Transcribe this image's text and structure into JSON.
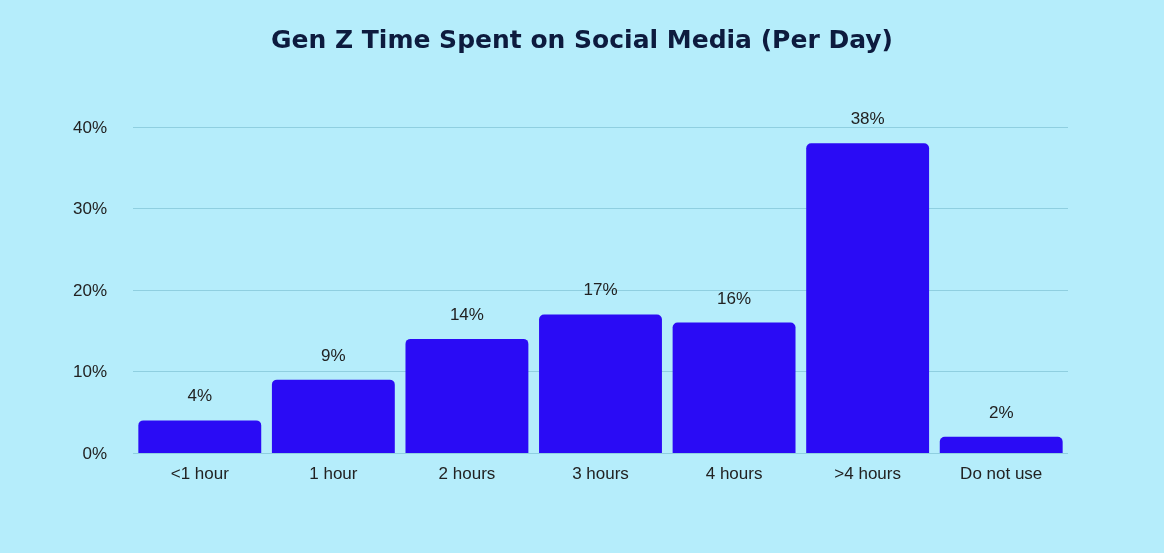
{
  "chart_data": {
    "type": "bar",
    "title": "Gen Z Time Spent on Social Media (Per Day)",
    "categories": [
      "<1 hour",
      "1 hour",
      "2 hours",
      "3 hours",
      "4 hours",
      ">4 hours",
      "Do not use"
    ],
    "values": [
      4,
      9,
      14,
      17,
      16,
      38,
      2
    ],
    "value_labels": [
      "4%",
      "9%",
      "14%",
      "17%",
      "16%",
      "38%",
      "2%"
    ],
    "color": "#2a0bf5",
    "ylim": [
      0,
      40
    ],
    "yticks": [
      {
        "value": 0,
        "label": "0%"
      },
      {
        "value": 10,
        "label": "10%"
      },
      {
        "value": 20,
        "label": "20%"
      },
      {
        "value": 30,
        "label": "30%"
      },
      {
        "value": 40,
        "label": "40%"
      }
    ],
    "grid": "y"
  }
}
